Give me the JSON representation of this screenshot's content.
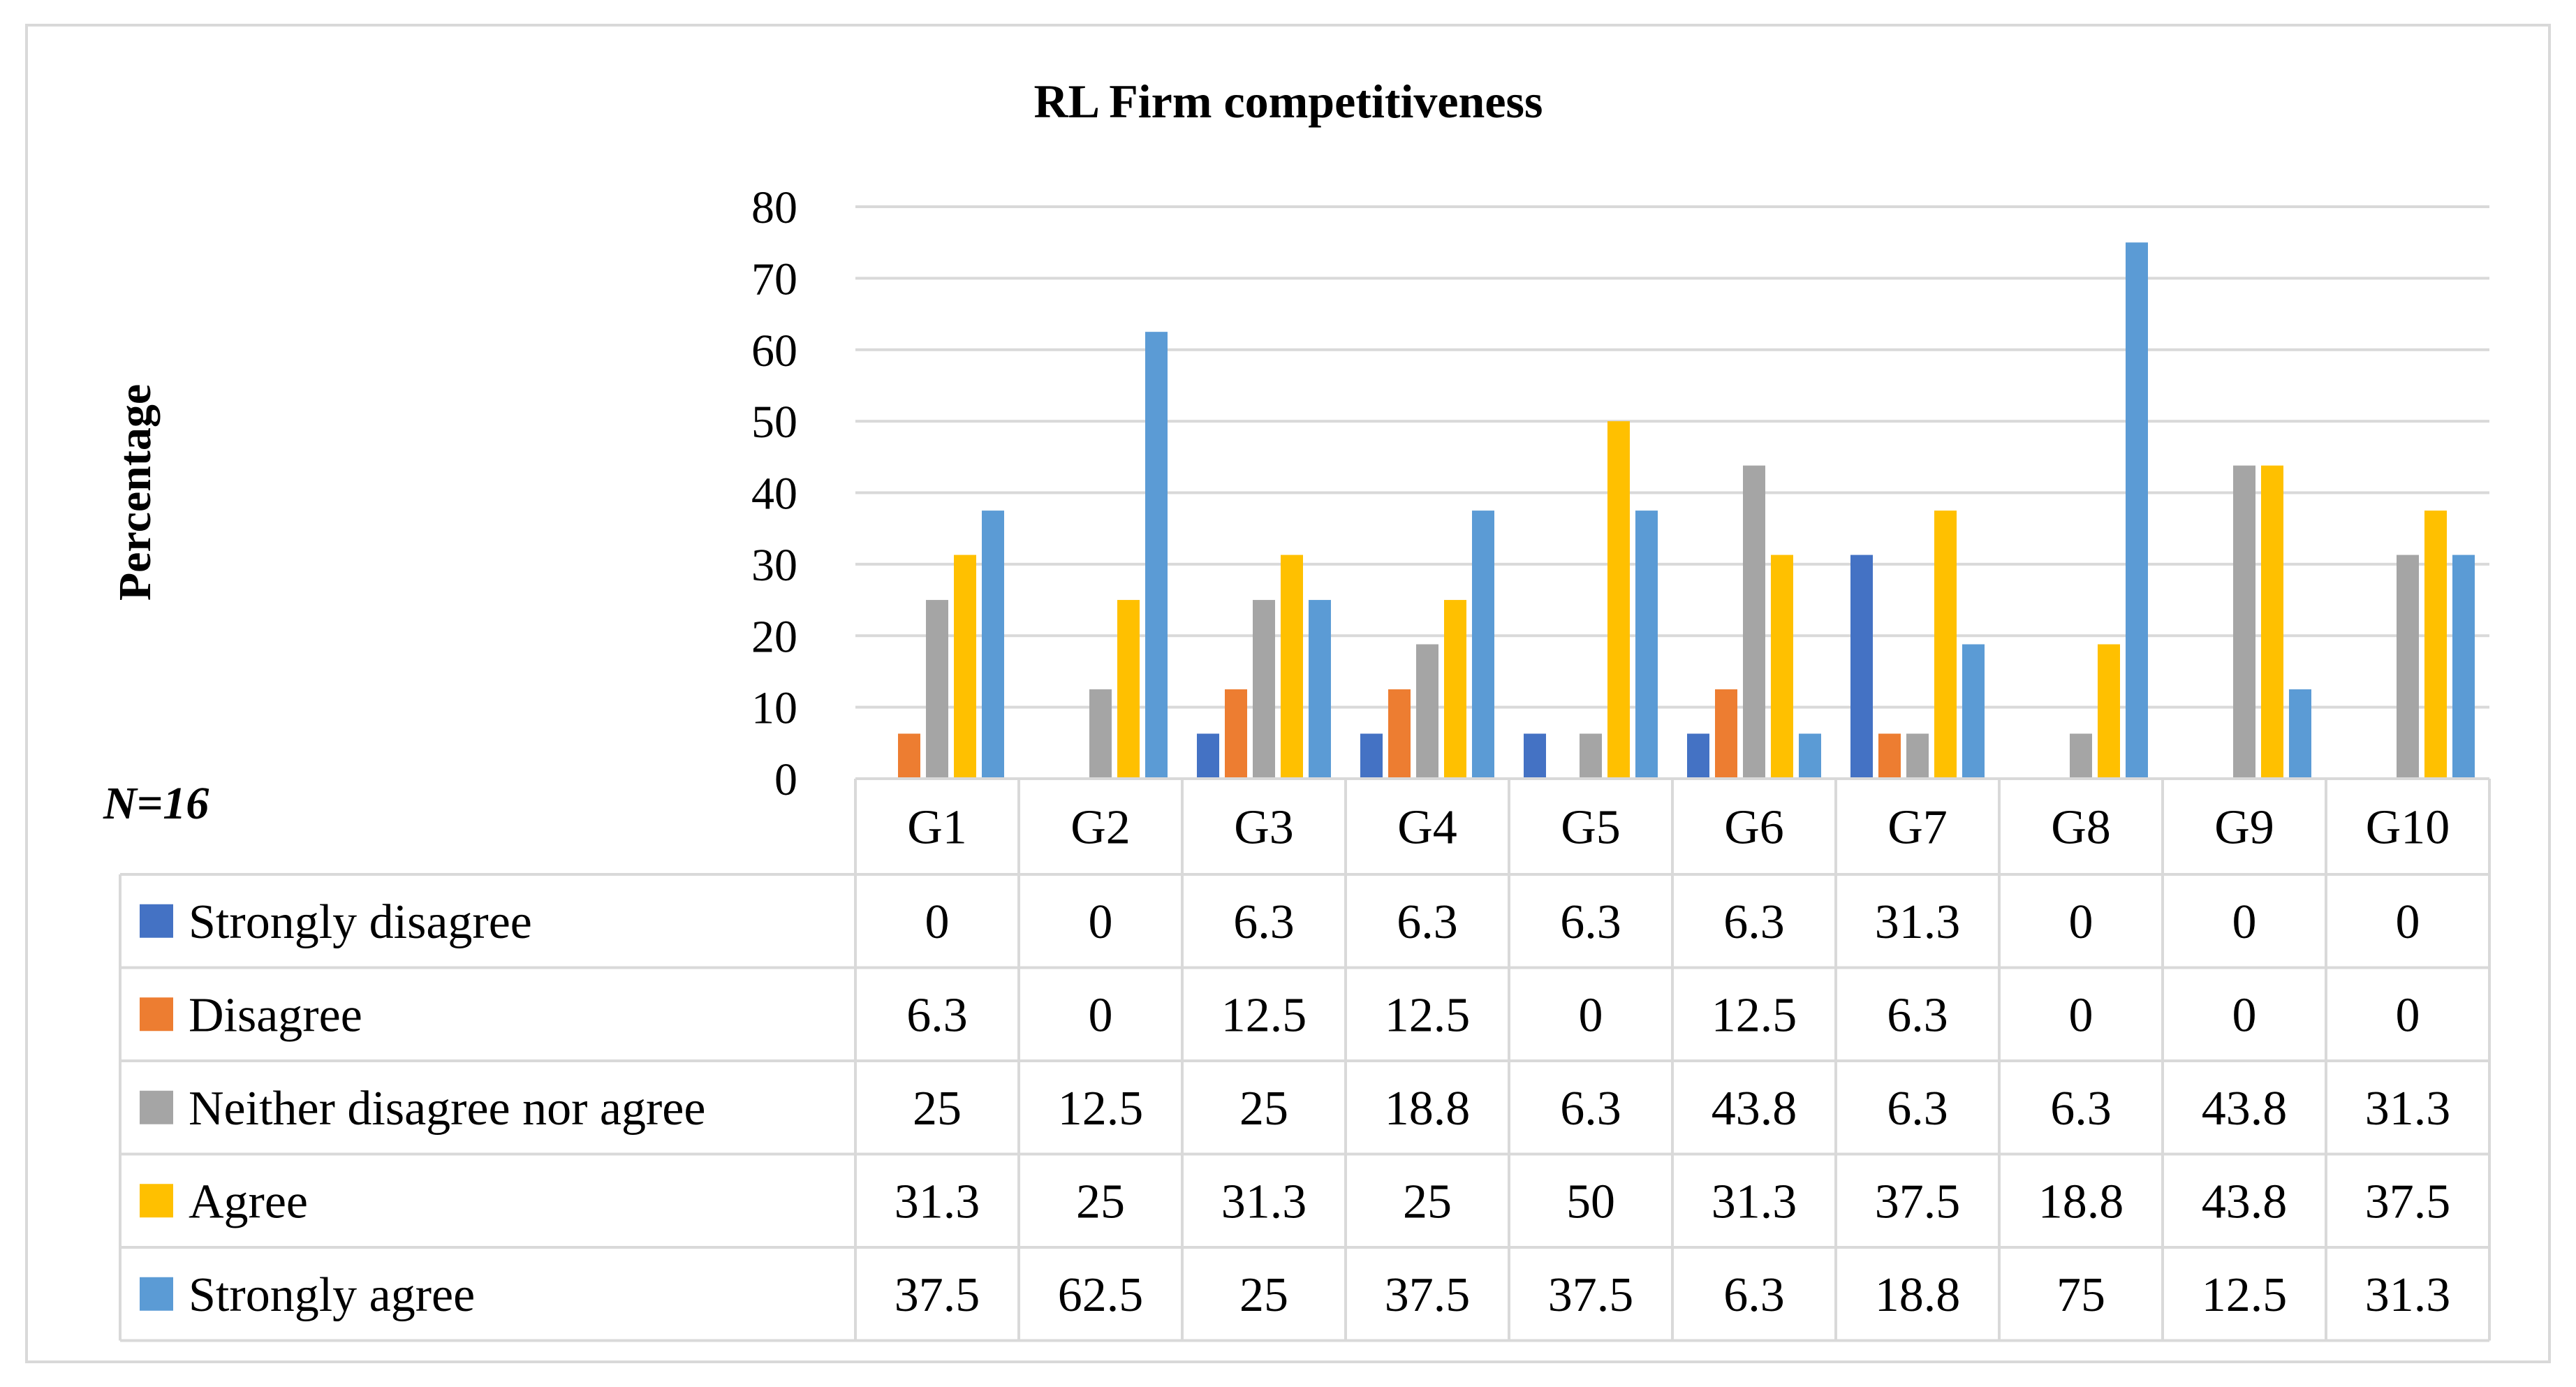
{
  "chart_data": {
    "type": "bar",
    "title": "RL Firm competitiveness",
    "xlabel": "",
    "ylabel": "Percentage",
    "note": "N=16",
    "ylim": [
      0,
      80
    ],
    "yticks": [
      0,
      10,
      20,
      30,
      40,
      50,
      60,
      70,
      80
    ],
    "grid": true,
    "legend": "data-table-left",
    "categories": [
      "G1",
      "G2",
      "G3",
      "G4",
      "G5",
      "G6",
      "G7",
      "G8",
      "G9",
      "G10"
    ],
    "series": [
      {
        "name": "Strongly disagree",
        "color": "#4472C4",
        "values": [
          0,
          0,
          6.3,
          6.3,
          6.3,
          6.3,
          31.3,
          0,
          0,
          0
        ]
      },
      {
        "name": "Disagree",
        "color": "#ED7D31",
        "values": [
          6.3,
          0,
          12.5,
          12.5,
          0,
          12.5,
          6.3,
          0,
          0,
          0
        ]
      },
      {
        "name": "Neither disagree nor agree",
        "color": "#A5A5A5",
        "values": [
          25,
          12.5,
          25,
          18.8,
          6.3,
          43.8,
          6.3,
          6.3,
          43.8,
          31.3
        ]
      },
      {
        "name": "Agree",
        "color": "#FFC000",
        "values": [
          31.3,
          25,
          31.3,
          25,
          50,
          31.3,
          37.5,
          18.8,
          43.8,
          37.5
        ]
      },
      {
        "name": "Strongly agree",
        "color": "#5B9BD5",
        "values": [
          37.5,
          62.5,
          25,
          37.5,
          37.5,
          6.3,
          18.8,
          75,
          12.5,
          31.3
        ]
      }
    ]
  }
}
